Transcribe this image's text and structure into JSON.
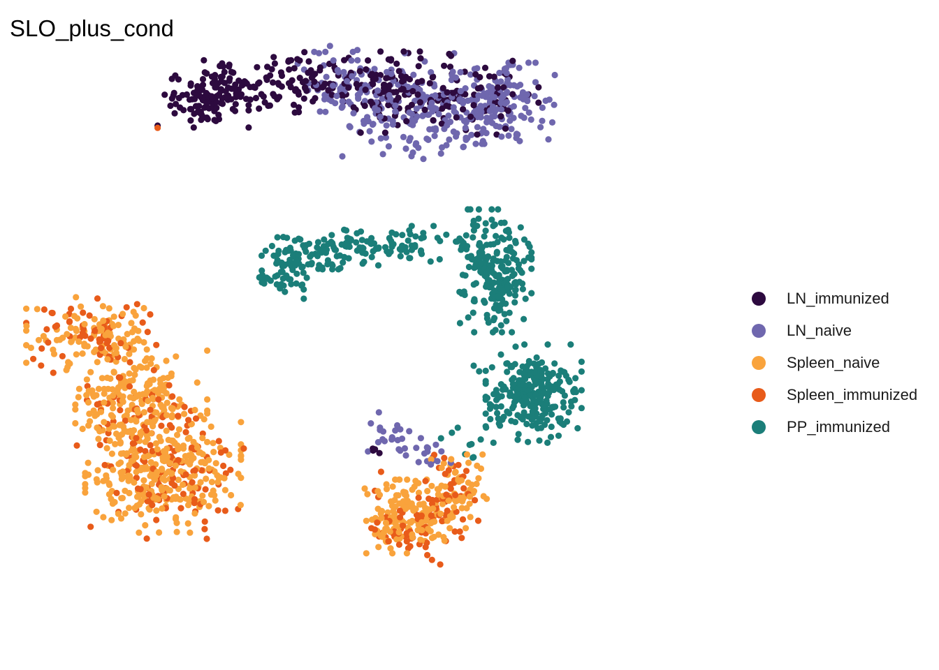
{
  "chart_data": {
    "type": "scatter",
    "title": "SLO_plus_cond",
    "xlabel": "",
    "ylabel": "",
    "axes_visible": false,
    "grid": false,
    "legend_position": "right",
    "point_note": "clouds listed per series as [center_x, center_y, spread_x, spread_y, count] in an arbitrary 0-100 embedding space (y up)",
    "xlim": [
      0,
      100
    ],
    "ylim": [
      0,
      100
    ],
    "series": [
      {
        "name": "LN_immunized",
        "color": "#2D0A3F",
        "clouds": [
          [
            11,
            83.5,
            3.5,
            2.2,
            90
          ],
          [
            18,
            86,
            4.5,
            2.4,
            70
          ],
          [
            31,
            88,
            5,
            2.4,
            70
          ],
          [
            45,
            85,
            5,
            3.3,
            110
          ],
          [
            62,
            84,
            4.5,
            3,
            60
          ],
          [
            41,
            21.5,
            1.2,
            0.8,
            4
          ]
        ],
        "points": [
          [
            48,
            92
          ],
          [
            52,
            83
          ],
          [
            2,
            79
          ]
        ]
      },
      {
        "name": "LN_naive",
        "color": "#6F67AE",
        "clouds": [
          [
            36,
            86,
            5,
            3.3,
            70
          ],
          [
            48,
            82.5,
            5.5,
            4.3,
            150
          ],
          [
            65,
            83,
            4.5,
            3.3,
            150
          ],
          [
            58,
            78.5,
            2,
            2.3,
            15
          ],
          [
            45,
            24,
            2,
            1.8,
            20
          ],
          [
            52,
            20.5,
            3.5,
            1.3,
            18
          ]
        ],
        "points": [
          [
            54,
            74
          ],
          [
            55,
            75.5
          ],
          [
            55.5,
            76.5
          ]
        ]
      },
      {
        "name": "Spleen_naive",
        "color": "#F9A33C",
        "clouds": [
          [
            -10,
            41,
            5.5,
            3.3,
            100
          ],
          [
            -1,
            29,
            5.5,
            4.5,
            220
          ],
          [
            3,
            16,
            6.5,
            4.5,
            250
          ],
          [
            48,
            9,
            3.5,
            3,
            140
          ],
          [
            57,
            13.5,
            2.5,
            3,
            70
          ]
        ],
        "points": [
          [
            40,
            14
          ],
          [
            40.5,
            13
          ]
        ]
      },
      {
        "name": "Spleen_immunized",
        "color": "#E85B1A",
        "clouds": [
          [
            -10,
            42,
            5.5,
            3.3,
            60
          ],
          [
            -1,
            27,
            5.5,
            4.5,
            60
          ],
          [
            4,
            16,
            6.5,
            5,
            90
          ],
          [
            49,
            7,
            4,
            3,
            60
          ],
          [
            56,
            14,
            2.2,
            3.5,
            40
          ]
        ],
        "points": [
          [
            2,
            78.6
          ],
          [
            43,
            17
          ],
          [
            48,
            3.3
          ]
        ]
      },
      {
        "name": "PP_immunized",
        "color": "#1B7E79",
        "clouds": [
          [
            26,
            53.5,
            2.5,
            2.5,
            70
          ],
          [
            34,
            57,
            5,
            1.7,
            80
          ],
          [
            48,
            57.5,
            5,
            1.6,
            60
          ],
          [
            64,
            53,
            3,
            5,
            220
          ],
          [
            71,
            31,
            4,
            4,
            260
          ],
          [
            59,
            22,
            2.6,
            1.7,
            8
          ]
        ],
        "points": [
          [
            66,
            44
          ],
          [
            67,
            42
          ],
          [
            65,
            38
          ],
          [
            60,
            36
          ],
          [
            61,
            35
          ],
          [
            56,
            24
          ],
          [
            54,
            23
          ]
        ]
      }
    ]
  }
}
